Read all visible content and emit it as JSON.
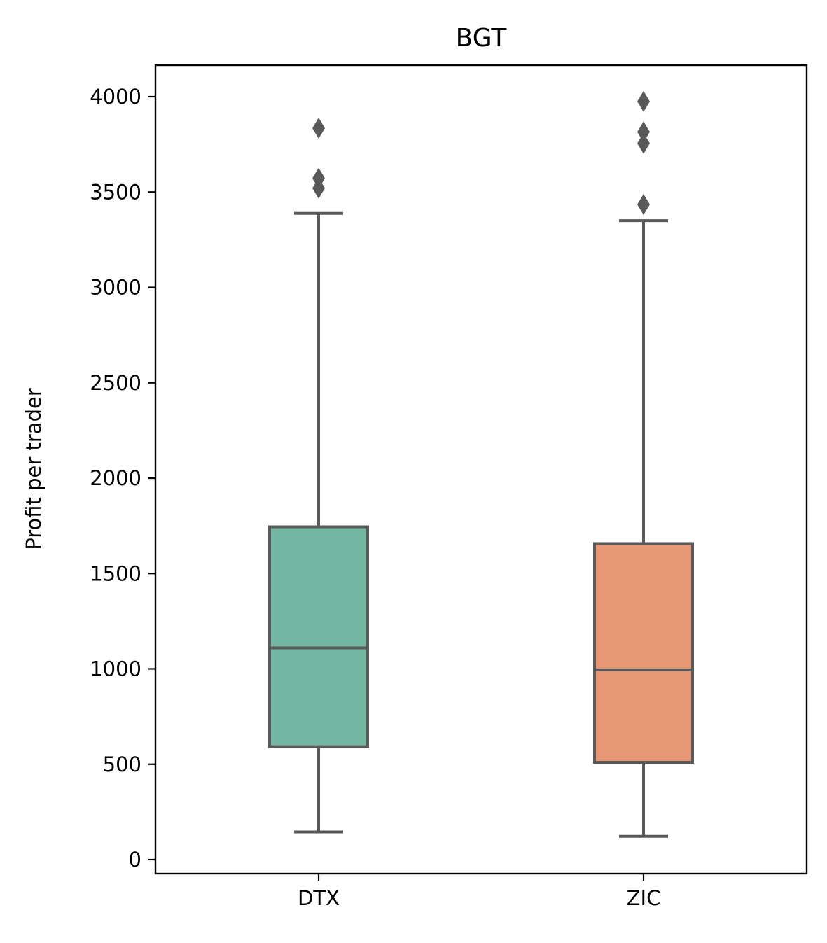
{
  "chart_data": {
    "type": "box",
    "title": "BGT",
    "xlabel": "",
    "ylabel": "Profit per trader",
    "ylim": [
      -75,
      4170
    ],
    "yticks": [
      0,
      500,
      1000,
      1500,
      2000,
      2500,
      3000,
      3500,
      4000
    ],
    "categories": [
      "DTX",
      "ZIC"
    ],
    "grid": false,
    "boxes": [
      {
        "category": "DTX",
        "color": "#73b6a2",
        "whisker_low": 145,
        "q1": 592,
        "median": 1110,
        "q3": 1745,
        "whisker_high": 3388,
        "outliers": [
          3520,
          3572,
          3835
        ]
      },
      {
        "category": "ZIC",
        "color": "#e89775",
        "whisker_low": 122,
        "q1": 510,
        "median": 995,
        "q3": 1657,
        "whisker_high": 3350,
        "outliers": [
          3435,
          3755,
          3815,
          3975
        ]
      }
    ]
  }
}
